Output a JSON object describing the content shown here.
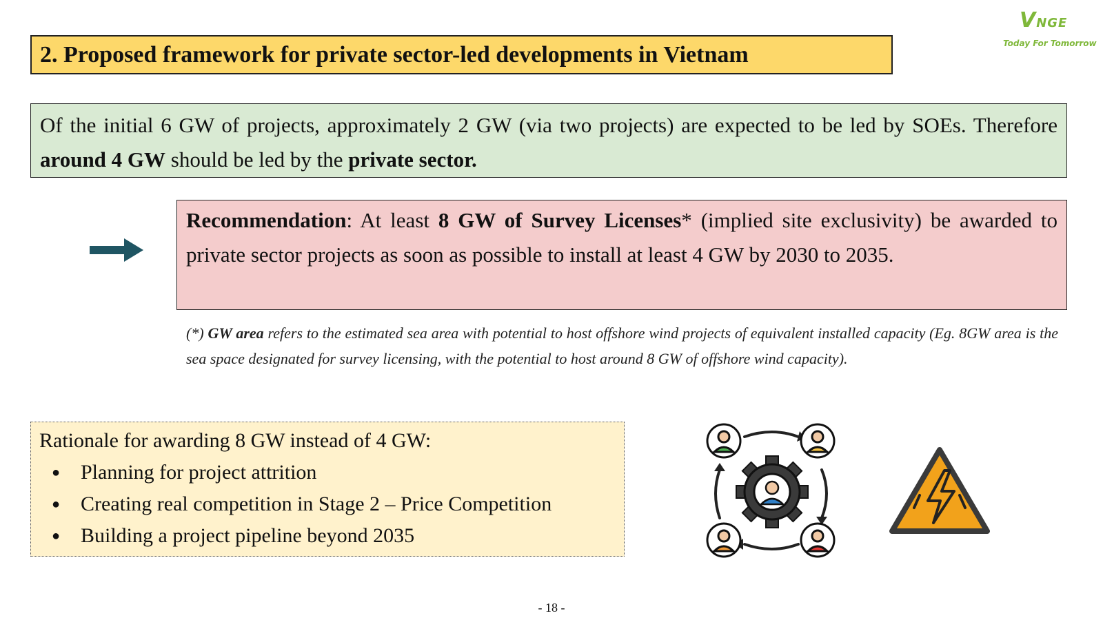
{
  "header": {
    "title": "2. Proposed framework for private sector-led developments in Vietnam"
  },
  "logo": {
    "mark_initial": "V",
    "mark_rest": "NGE",
    "tagline": "Today For Tomorrow"
  },
  "intro": {
    "text_1": "Of the initial 6 GW of projects, approximately 2 GW (via two projects) are expected to be led by SOEs. Therefore ",
    "bold_1": "around 4 GW",
    "text_2": " should be led by the ",
    "bold_2": "private sector."
  },
  "recommendation": {
    "label": "Recommendation",
    "text_1": ": At least ",
    "bold_1": "8 GW of Survey Licenses",
    "text_2": "* (implied site exclusivity) be awarded to private sector projects as soon as possible to install at least 4 GW by 2030 to 2035."
  },
  "footnote": {
    "marker": "(*) ",
    "term": "GW area",
    "text": " refers to the estimated sea area with potential to host offshore wind projects of equivalent installed capacity (Eg. 8GW area is the sea space designated for survey licensing, with the potential to host around 8 GW of offshore wind capacity)."
  },
  "rationale": {
    "heading": "Rationale for awarding 8 GW instead of 4 GW:",
    "items": [
      "Planning for project attrition",
      "Creating real competition in Stage 2 – Price Competition",
      "Building a project pipeline beyond 2035"
    ]
  },
  "icons": {
    "arrow": "right-arrow-icon",
    "people": "team-collaboration-icon",
    "warning": "high-voltage-warning-icon"
  },
  "colors": {
    "title_bg": "#fdd86a",
    "intro_bg": "#d9ead3",
    "recommendation_bg": "#f4cccc",
    "rationale_bg": "#fff2cc",
    "arrow": "#1f5563",
    "logo_green": "#7fb83a",
    "warning_orange": "#f2a21b"
  },
  "page": {
    "number": "- 18 -"
  }
}
